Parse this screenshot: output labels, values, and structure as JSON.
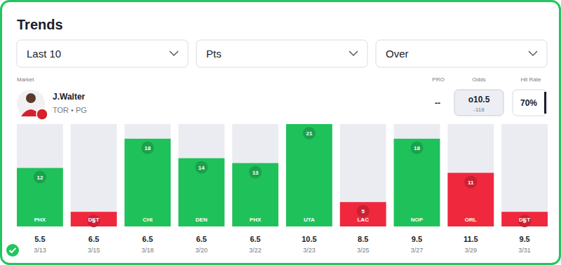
{
  "header": {
    "title": "Trends",
    "filters": [
      "Last 10",
      "Pts",
      "Over"
    ]
  },
  "market": {
    "label": "Market",
    "player": "J.Walter",
    "team": "TOR • PG"
  },
  "columns": {
    "pro": "PRO",
    "odds": "Odds",
    "hit_rate": "Hit Rate"
  },
  "pro": "--",
  "odds": {
    "line": "o10.5",
    "price": "-118"
  },
  "hit_rate": "70%",
  "chart_data": {
    "type": "bar",
    "categories": [
      "PHX",
      "DET",
      "CHI",
      "DEN",
      "PHX",
      "UTA",
      "LAC",
      "NOP",
      "ORL",
      "DET"
    ],
    "values": [
      12,
      3,
      18,
      14,
      13,
      21,
      5,
      18,
      11,
      3
    ],
    "colors": [
      "#1fc15b",
      "#f0283d",
      "#1fc15b",
      "#1fc15b",
      "#1fc15b",
      "#1fc15b",
      "#f0283d",
      "#1fc15b",
      "#f0283d",
      "#f0283d"
    ],
    "lines": [
      5.5,
      6.5,
      6.5,
      6.5,
      6.5,
      10.5,
      8.5,
      9.5,
      11.5,
      9.5
    ],
    "dates": [
      "3/13",
      "3/15",
      "3/18",
      "3/20",
      "3/22",
      "3/23",
      "3/25",
      "3/27",
      "3/29",
      "3/31"
    ],
    "ylim": [
      0,
      21
    ],
    "tick_labels": false,
    "grid": false,
    "data_labels": true
  }
}
